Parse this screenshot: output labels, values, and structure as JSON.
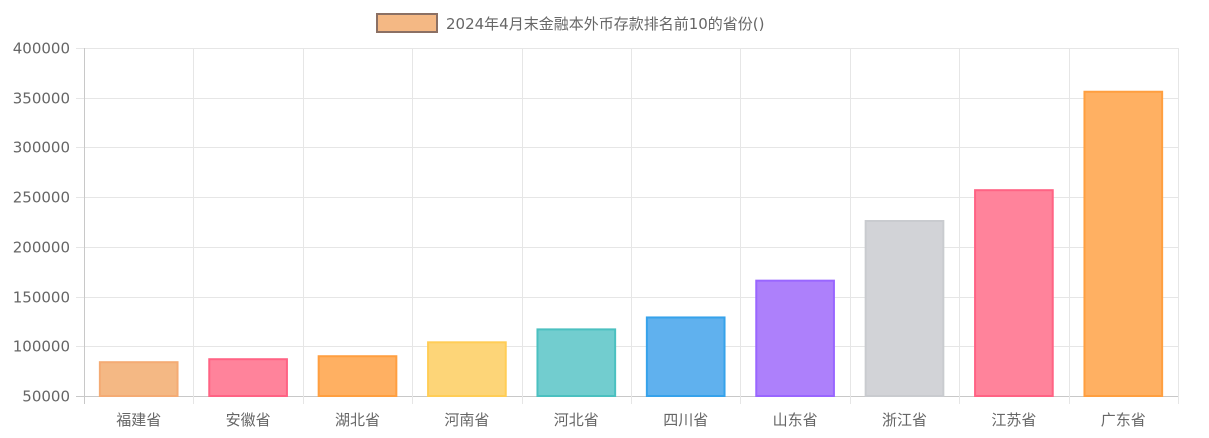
{
  "chart_data": {
    "type": "bar",
    "title": "",
    "xlabel": "",
    "ylabel": "",
    "ylim": [
      50000,
      400000
    ],
    "y_ticks": [
      "400000",
      "350000",
      "300000",
      "250000",
      "200000",
      "150000",
      "100000",
      "50000"
    ],
    "y_tick_values": [
      400000,
      350000,
      300000,
      250000,
      200000,
      150000,
      100000,
      50000
    ],
    "grid": true,
    "legend_position": "top-center",
    "categories": [
      "福建省",
      "安徽省",
      "湖北省",
      "河南省",
      "河北省",
      "四川省",
      "山东省",
      "浙江省",
      "江苏省",
      "广东省"
    ],
    "series": [
      {
        "name": "2024年4月末金融本外币存款排名前10的省份()",
        "values": [
          84000,
          87000,
          90000,
          104000,
          117000,
          129000,
          166000,
          226000,
          257000,
          356000
        ]
      }
    ],
    "bar_fill_colors": [
      "#f4b884",
      "#ff839b",
      "#ffb062",
      "#fdd578",
      "#72cdcf",
      "#60b1ee",
      "#ad80fb",
      "#d2d3d7",
      "#ff839b",
      "#ffb062"
    ],
    "bar_border_colors": [
      "#f4ab74",
      "#ff6384",
      "#ff9f40",
      "#ffcd56",
      "#4bc0c0",
      "#36a2eb",
      "#9966ff",
      "#c9cbcf",
      "#ff6384",
      "#ff9f40"
    ],
    "legend_fill_color": "#f4b884",
    "legend_border_color": "#8b7064"
  }
}
